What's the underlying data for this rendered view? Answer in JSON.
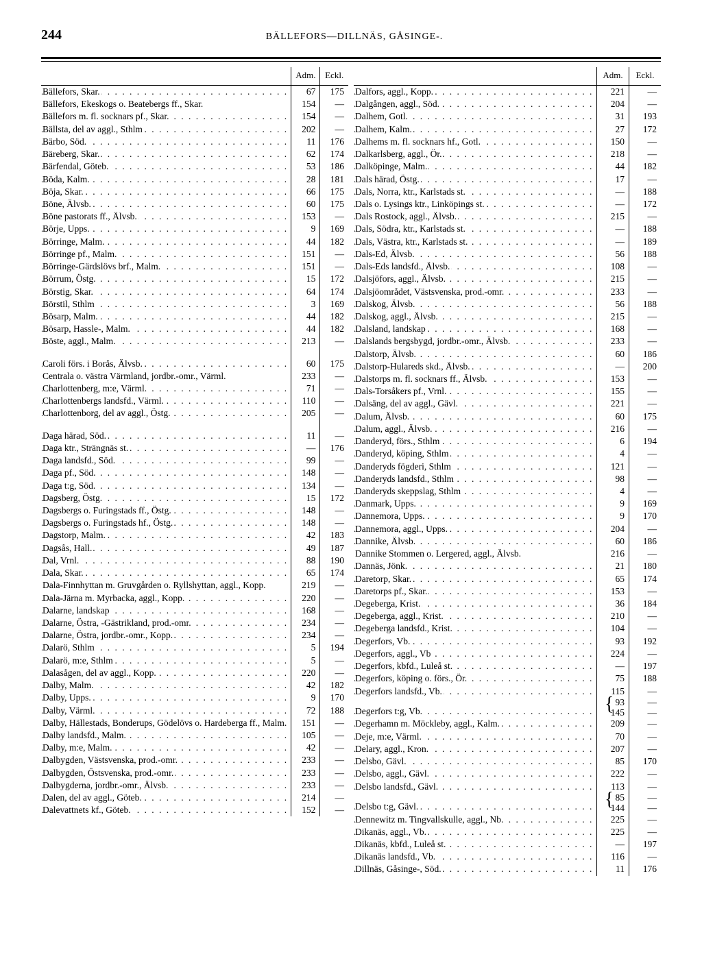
{
  "header": {
    "page": "244",
    "title": "BÄLLEFORS—DILLNÄS, GÅSINGE-."
  },
  "cols": {
    "adm": "Adm.",
    "eckl": "Eckl."
  },
  "left": [
    {
      "n": "Bällefors, Skar.",
      "a": "67",
      "e": "175"
    },
    {
      "n": "Bällefors, Ekeskogs o. Beatebergs ff., Skar.",
      "a": "154",
      "e": "—",
      "nodots": true
    },
    {
      "n": "Bällefors m. fl. socknars pf., Skar.",
      "a": "154",
      "e": "—"
    },
    {
      "n": "Bällsta, del av aggl., Sthlm",
      "a": "202",
      "e": "—"
    },
    {
      "n": "Bärbo, Söd.",
      "a": "11",
      "e": "176"
    },
    {
      "n": "Bäreberg, Skar.",
      "a": "62",
      "e": "174"
    },
    {
      "n": "Bärfendal, Göteb.",
      "a": "53",
      "e": "186"
    },
    {
      "n": "Böda, Kalm.",
      "a": "28",
      "e": "181"
    },
    {
      "n": "Böja, Skar.",
      "a": "66",
      "e": "175"
    },
    {
      "n": "Böne, Älvsb.",
      "a": "60",
      "e": "175"
    },
    {
      "n": "Böne pastorats ff., Älvsb.",
      "a": "153",
      "e": "—"
    },
    {
      "n": "Börje, Upps.",
      "a": "9",
      "e": "169"
    },
    {
      "n": "Börringe, Malm.",
      "a": "44",
      "e": "182"
    },
    {
      "n": "Börringe pf., Malm.",
      "a": "151",
      "e": "—"
    },
    {
      "n": "Börringe-Gärdslövs brf., Malm.",
      "a": "151",
      "e": "—"
    },
    {
      "n": "Börrum, Östg.",
      "a": "15",
      "e": "172"
    },
    {
      "n": "Börstig, Skar.",
      "a": "64",
      "e": "174"
    },
    {
      "n": "Börstil, Sthlm",
      "a": "3",
      "e": "169"
    },
    {
      "n": "Bösarp, Malm.",
      "a": "44",
      "e": "182"
    },
    {
      "n": "Bösarp, Hassle-, Malm.",
      "a": "44",
      "e": "182"
    },
    {
      "n": "Böste, aggl., Malm.",
      "a": "213",
      "e": "—"
    },
    {
      "gap": true
    },
    {
      "n": "Caroli förs. i Borås, Älvsb.",
      "a": "60",
      "e": "175"
    },
    {
      "n": "Centrala o. västra Värmland, jordbr.-omr., Värml.",
      "a": "233",
      "e": "—",
      "nodots": true
    },
    {
      "n": "Charlottenberg, m:e, Värml.",
      "a": "71",
      "e": "—"
    },
    {
      "n": "Charlottenbergs landsfd., Värml.",
      "a": "110",
      "e": "—"
    },
    {
      "n": "Charlottenborg, del av aggl., Östg.",
      "a": "205",
      "e": "—"
    },
    {
      "gap": true
    },
    {
      "n": "Daga härad, Söd.",
      "a": "11",
      "e": "—"
    },
    {
      "n": "Daga ktr., Strängnäs st.",
      "a": "—",
      "e": "176"
    },
    {
      "n": "Daga landsfd., Söd.",
      "a": "99",
      "e": "—"
    },
    {
      "n": "Daga pf., Söd.",
      "a": "148",
      "e": "—"
    },
    {
      "n": "Daga t:g, Söd.",
      "a": "134",
      "e": "—"
    },
    {
      "n": "Dagsberg, Östg.",
      "a": "15",
      "e": "172"
    },
    {
      "n": "Dagsbergs o. Furingstads ff., Östg.",
      "a": "148",
      "e": "—"
    },
    {
      "n": "Dagsbergs o. Furingstads hf., Östg.",
      "a": "148",
      "e": "—"
    },
    {
      "n": "Dagstorp, Malm.",
      "a": "42",
      "e": "183"
    },
    {
      "n": "Dagsås, Hall.",
      "a": "49",
      "e": "187"
    },
    {
      "n": "Dal, Vrnl.",
      "a": "88",
      "e": "190"
    },
    {
      "n": "Dala, Skar.",
      "a": "65",
      "e": "174"
    },
    {
      "n": "Dala-Finnhyttan m. Gruvgården o. Ryllshyttan, aggl., Kopp.",
      "a": "219",
      "e": "—",
      "nodots": true
    },
    {
      "n": "Dala-Järna m. Myrbacka, aggl., Kopp.",
      "a": "220",
      "e": "—"
    },
    {
      "n": "Dalarne, landskap",
      "a": "168",
      "e": "—"
    },
    {
      "n": "Dalarne, Östra, -Gästrikland, prod.-omr.",
      "a": "234",
      "e": "—"
    },
    {
      "n": "Dalarne, Östra, jordbr.-omr., Kopp.",
      "a": "234",
      "e": "—"
    },
    {
      "n": "Dalarö, Sthlm",
      "a": "5",
      "e": "194"
    },
    {
      "n": "Dalarö, m:e, Sthlm",
      "a": "5",
      "e": "—"
    },
    {
      "n": "Dalasågen, del av aggl., Kopp.",
      "a": "220",
      "e": "—"
    },
    {
      "n": "Dalby, Malm.",
      "a": "42",
      "e": "182"
    },
    {
      "n": "Dalby, Upps.",
      "a": "9",
      "e": "170"
    },
    {
      "n": "Dalby, Värml.",
      "a": "72",
      "e": "188"
    },
    {
      "n": "Dalby, Hällestads, Bonderups, Gödelövs o. Hardeberga ff., Malm.",
      "a": "151",
      "e": "—",
      "nodots": true
    },
    {
      "n": "Dalby landsfd., Malm.",
      "a": "105",
      "e": "—"
    },
    {
      "n": "Dalby, m:e, Malm.",
      "a": "42",
      "e": "—"
    },
    {
      "n": "Dalbygden, Västsvenska, prod.-omr.",
      "a": "233",
      "e": "—"
    },
    {
      "n": "Dalbygden, Östsvenska, prod.-omr.",
      "a": "233",
      "e": "—"
    },
    {
      "n": "Dalbygderna, jordbr.-omr., Älvsb.",
      "a": "233",
      "e": "—"
    },
    {
      "n": "Dalen, del av aggl., Göteb.",
      "a": "214",
      "e": "—"
    },
    {
      "n": "Dalevattnets kf., Göteb.",
      "a": "152",
      "e": "—"
    }
  ],
  "right": [
    {
      "n": "Dalfors, aggl., Kopp.",
      "a": "221",
      "e": "—"
    },
    {
      "n": "Dalgången, aggl., Söd.",
      "a": "204",
      "e": "—"
    },
    {
      "n": "Dalhem, Gotl.",
      "a": "31",
      "e": "193"
    },
    {
      "n": "Dalhem, Kalm.",
      "a": "27",
      "e": "172"
    },
    {
      "n": "Dalhems m. fl. socknars hf., Gotl.",
      "a": "150",
      "e": "—"
    },
    {
      "n": "Dalkarlsberg, aggl., Ör.",
      "a": "218",
      "e": "—"
    },
    {
      "n": "Dalköpinge, Malm.",
      "a": "44",
      "e": "182"
    },
    {
      "n": "Dals härad, Östg.",
      "a": "17",
      "e": "—"
    },
    {
      "n": "Dals, Norra, ktr., Karlstads st.",
      "a": "—",
      "e": "188"
    },
    {
      "n": "Dals o. Lysings ktr., Linköpings st.",
      "a": "—",
      "e": "172"
    },
    {
      "n": "Dals Rostock, aggl., Älvsb.",
      "a": "215",
      "e": "—"
    },
    {
      "n": "Dals, Södra, ktr., Karlstads st.",
      "a": "—",
      "e": "188"
    },
    {
      "n": "Dals, Västra, ktr., Karlstads st.",
      "a": "—",
      "e": "189"
    },
    {
      "n": "Dals-Ed, Älvsb.",
      "a": "56",
      "e": "188"
    },
    {
      "n": "Dals-Eds landsfd., Älvsb.",
      "a": "108",
      "e": "—"
    },
    {
      "n": "Dalsjöfors, aggl., Älvsb.",
      "a": "215",
      "e": "—"
    },
    {
      "n": "Dalsjöområdet, Västsvenska, prod.-omr.",
      "a": "233",
      "e": "—"
    },
    {
      "n": "Dalskog, Älvsb.",
      "a": "56",
      "e": "188"
    },
    {
      "n": "Dalskog, aggl., Älvsb.",
      "a": "215",
      "e": "—"
    },
    {
      "n": "Dalsland, landskap",
      "a": "168",
      "e": "—"
    },
    {
      "n": "Dalslands bergsbygd, jordbr.-omr., Älvsb.",
      "a": "233",
      "e": "—"
    },
    {
      "n": "Dalstorp, Älvsb.",
      "a": "60",
      "e": "186"
    },
    {
      "n": "Dalstorp-Hulareds skd., Älvsb.",
      "a": "—",
      "e": "200"
    },
    {
      "n": "Dalstorps m. fl. socknars ff., Älvsb.",
      "a": "153",
      "e": "—"
    },
    {
      "n": "Dals-Torsåkers pf., Vrnl.",
      "a": "155",
      "e": "—"
    },
    {
      "n": "Dalsäng, del av aggl., Gävl.",
      "a": "221",
      "e": "—"
    },
    {
      "n": "Dalum, Älvsb.",
      "a": "60",
      "e": "175"
    },
    {
      "n": "Dalum, aggl., Älvsb.",
      "a": "216",
      "e": "—"
    },
    {
      "n": "Danderyd, förs., Sthlm",
      "a": "6",
      "e": "194"
    },
    {
      "n": "Danderyd, köping, Sthlm",
      "a": "4",
      "e": "—"
    },
    {
      "n": "Danderyds fögderi, Sthlm",
      "a": "121",
      "e": "—"
    },
    {
      "n": "Danderyds landsfd., Sthlm",
      "a": "98",
      "e": "—"
    },
    {
      "n": "Danderyds skeppslag, Sthlm",
      "a": "4",
      "e": "—"
    },
    {
      "n": "Danmark, Upps.",
      "a": "9",
      "e": "169"
    },
    {
      "n": "Dannemora, Upps.",
      "a": "9",
      "e": "170"
    },
    {
      "n": "Dannemora, aggl., Upps.",
      "a": "204",
      "e": "—"
    },
    {
      "n": "Dannike, Älvsb.",
      "a": "60",
      "e": "186"
    },
    {
      "n": "Dannike Stommen o. Lergered, aggl., Älvsb.",
      "a": "216",
      "e": "—",
      "nodots": true
    },
    {
      "n": "Dannäs, Jönk.",
      "a": "21",
      "e": "180"
    },
    {
      "n": "Daretorp, Skar.",
      "a": "65",
      "e": "174"
    },
    {
      "n": "Daretorps pf., Skar.",
      "a": "153",
      "e": "—"
    },
    {
      "n": "Degeberga, Krist.",
      "a": "36",
      "e": "184"
    },
    {
      "n": "Degeberga, aggl., Krist.",
      "a": "210",
      "e": "—"
    },
    {
      "n": "Degeberga landsfd., Krist.",
      "a": "104",
      "e": "—"
    },
    {
      "n": "Degerfors, Vb.",
      "a": "93",
      "e": "192"
    },
    {
      "n": "Degerfors, aggl., Vb",
      "a": "224",
      "e": "—"
    },
    {
      "n": "Degerfors, kbfd., Luleå st.",
      "a": "—",
      "e": "197"
    },
    {
      "n": "Degerfors, köping o. förs., Ör.",
      "a": "75",
      "e": "188"
    },
    {
      "n": "Degerfors landsfd., Vb.",
      "a": "115",
      "e": "—"
    },
    {
      "n": "Degerfors t:g, Vb.",
      "a": "{ 93\n145",
      "e": "—",
      "brace": true
    },
    {
      "n": "Degerhamn m. Möckleby, aggl., Kalm.",
      "a": "209",
      "e": "—"
    },
    {
      "n": "Deje, m:e, Värml.",
      "a": "70",
      "e": "—"
    },
    {
      "n": "Delary, aggl., Kron.",
      "a": "207",
      "e": "—"
    },
    {
      "n": "Delsbo, Gävl.",
      "a": "85",
      "e": "170"
    },
    {
      "n": "Delsbo, aggl., Gävl.",
      "a": "222",
      "e": "—"
    },
    {
      "n": "Delsbo landsfd., Gävl.",
      "a": "113",
      "e": "—"
    },
    {
      "n": "Delsbo t:g, Gävl.",
      "a": "{ 85\n144",
      "e": "—",
      "brace": true
    },
    {
      "n": "Dennewitz m. Tingvallskulle, aggl., Nb.",
      "a": "225",
      "e": "—"
    },
    {
      "n": "Dikanäs, aggl., Vb.",
      "a": "225",
      "e": "—"
    },
    {
      "n": "Dikanäs, kbfd., Luleå st.",
      "a": "—",
      "e": "197"
    },
    {
      "n": "Dikanäs landsfd., Vb.",
      "a": "116",
      "e": "—"
    },
    {
      "n": "Dillnäs, Gåsinge-, Söd.",
      "a": "11",
      "e": "176"
    }
  ]
}
